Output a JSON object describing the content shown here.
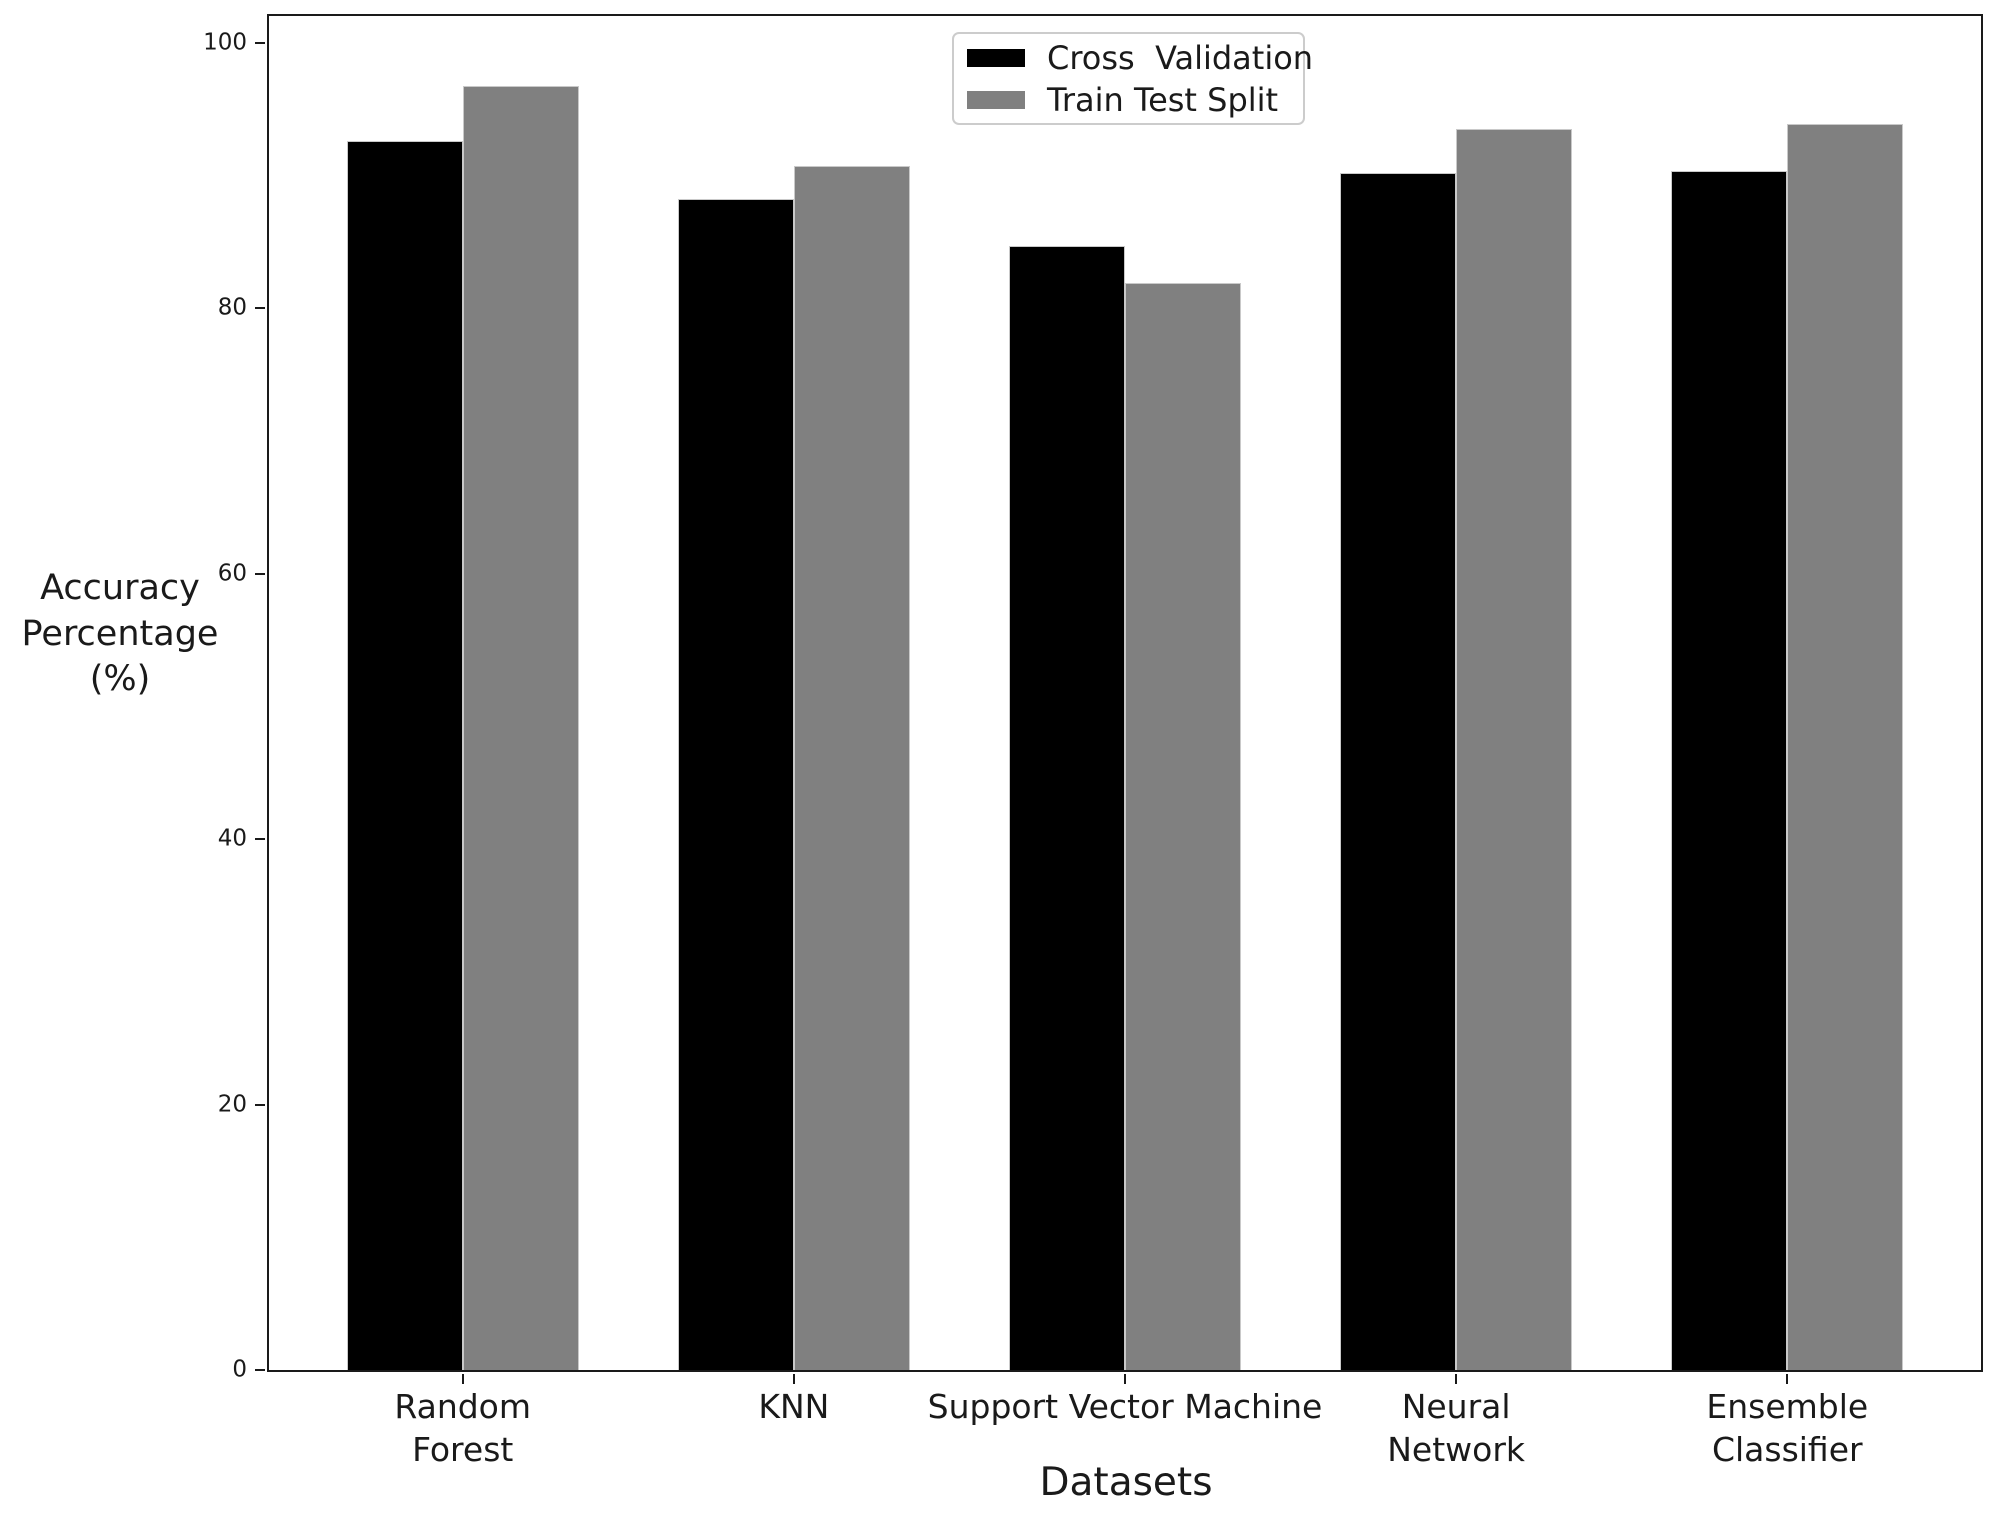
{
  "chart_data": {
    "type": "bar",
    "title": "",
    "xlabel": "Datasets",
    "ylabel": "Accuracy\nPercentage\n(%)",
    "categories": [
      "Random\nForest",
      "KNN",
      "Support Vector Machine",
      "Neural\nNetwork",
      "Ensemble\nClassifier"
    ],
    "series": [
      {
        "name": "Cross  Validation",
        "color": "#000000",
        "values": [
          92.6,
          88.2,
          84.7,
          90.2,
          90.3
        ]
      },
      {
        "name": "Train Test Split",
        "color": "#808080",
        "values": [
          96.7,
          90.7,
          81.9,
          93.5,
          93.9
        ]
      }
    ],
    "yticks": [
      0,
      20,
      40,
      60,
      80,
      100
    ],
    "ylim": [
      0,
      102
    ],
    "bar_width_units": 0.35,
    "x_margin_units": 0.585,
    "grid": false,
    "legend_position": "upper center"
  },
  "colors": {
    "spine": "#1a1a1a",
    "bar_cross_validation": "#000000",
    "bar_train_test_split": "#808080",
    "legend_border": "#cccccc",
    "background": "#ffffff"
  }
}
